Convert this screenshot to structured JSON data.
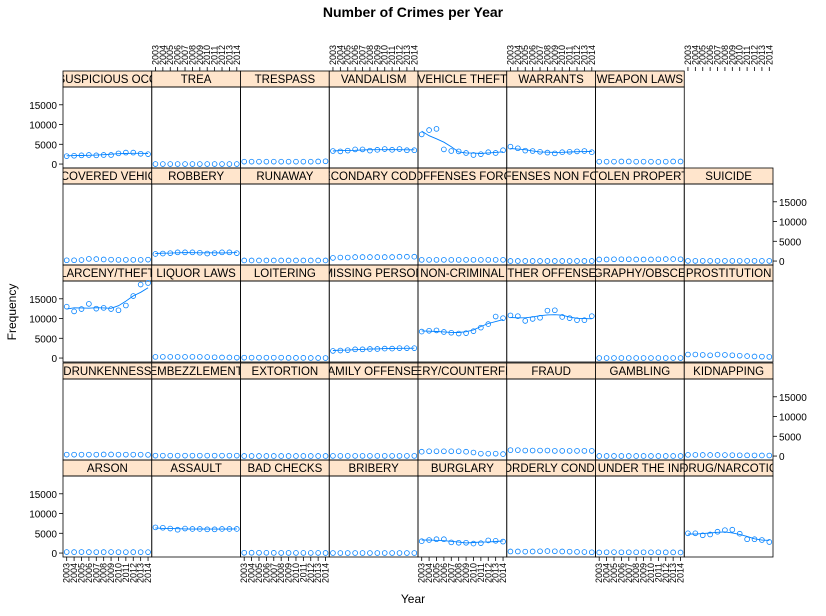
{
  "chart_data": {
    "type": "scatter",
    "title": "Number of Crimes per Year",
    "xlabel": "Year",
    "ylabel": "Frequency",
    "x": [
      2003,
      2004,
      2005,
      2006,
      2007,
      2008,
      2009,
      2010,
      2011,
      2012,
      2013,
      2014
    ],
    "ylim": [
      -1000,
      19500
    ],
    "yticks": [
      0,
      5000,
      10000,
      15000
    ],
    "grid": false,
    "layout": {
      "columns": 8,
      "rows": 5
    },
    "panels": [
      {
        "name": "ARSON",
        "row": 0,
        "col": 0,
        "values": [
          250,
          240,
          260,
          240,
          230,
          240,
          250,
          230,
          220,
          240,
          230,
          220
        ]
      },
      {
        "name": "ASSAULT",
        "row": 0,
        "col": 1,
        "values": [
          6500,
          6400,
          6200,
          5900,
          6200,
          6100,
          6100,
          6000,
          6000,
          6100,
          6100,
          6100
        ],
        "smooth": true
      },
      {
        "name": "BAD CHECKS",
        "row": 0,
        "col": 2,
        "values": [
          70,
          80,
          70,
          60,
          50,
          40,
          40,
          30,
          30,
          30,
          30,
          20
        ]
      },
      {
        "name": "BRIBERY",
        "row": 0,
        "col": 3,
        "values": [
          10,
          10,
          10,
          10,
          10,
          10,
          10,
          10,
          10,
          10,
          10,
          10
        ]
      },
      {
        "name": "BURGLARY",
        "row": 0,
        "col": 4,
        "values": [
          3000,
          3300,
          3500,
          3500,
          2700,
          2600,
          2600,
          2400,
          2500,
          3200,
          3100,
          2900
        ],
        "smooth": true
      },
      {
        "name": "DISORDERLY CONDUCT",
        "row": 0,
        "col": 5,
        "values": [
          400,
          400,
          350,
          400,
          450,
          500,
          450,
          400,
          350,
          300,
          250,
          200
        ]
      },
      {
        "name": "DRIVING UNDER THE INFLUENCE",
        "row": 0,
        "col": 6,
        "values": [
          150,
          200,
          220,
          200,
          200,
          200,
          200,
          200,
          200,
          180,
          180,
          150
        ]
      },
      {
        "name": "DRUG/NARCOTIC",
        "row": 0,
        "col": 7,
        "values": [
          5000,
          5000,
          4500,
          4700,
          5400,
          5800,
          5900,
          4900,
          3500,
          3500,
          3300,
          2800
        ],
        "smooth": true
      },
      {
        "name": "DRUNKENNESS",
        "row": 1,
        "col": 0,
        "values": [
          350,
          350,
          350,
          350,
          350,
          400,
          400,
          350,
          350,
          350,
          350,
          300
        ]
      },
      {
        "name": "EMBEZZLEMENT",
        "row": 1,
        "col": 1,
        "values": [
          100,
          100,
          100,
          100,
          100,
          100,
          100,
          100,
          100,
          100,
          100,
          100
        ]
      },
      {
        "name": "EXTORTION",
        "row": 1,
        "col": 2,
        "values": [
          20,
          20,
          20,
          20,
          20,
          20,
          20,
          20,
          20,
          20,
          20,
          20
        ]
      },
      {
        "name": "FAMILY OFFENSES",
        "row": 1,
        "col": 3,
        "values": [
          40,
          40,
          40,
          40,
          40,
          40,
          40,
          40,
          40,
          40,
          40,
          40
        ]
      },
      {
        "name": "FORGERY/COUNTERFEITING",
        "row": 1,
        "col": 4,
        "values": [
          1100,
          1200,
          1200,
          1200,
          1200,
          1200,
          1100,
          900,
          600,
          600,
          600,
          500
        ]
      },
      {
        "name": "FRAUD",
        "row": 1,
        "col": 5,
        "values": [
          1500,
          1500,
          1400,
          1400,
          1400,
          1400,
          1300,
          1300,
          1300,
          1300,
          1300,
          1300
        ]
      },
      {
        "name": "GAMBLING",
        "row": 1,
        "col": 6,
        "values": [
          20,
          20,
          20,
          20,
          20,
          20,
          20,
          20,
          20,
          20,
          20,
          20
        ]
      },
      {
        "name": "KIDNAPPING",
        "row": 1,
        "col": 7,
        "values": [
          300,
          300,
          280,
          280,
          280,
          250,
          230,
          200,
          180,
          160,
          150,
          140
        ]
      },
      {
        "name": "LARCENY/THEFT",
        "row": 2,
        "col": 0,
        "values": [
          13000,
          11800,
          12400,
          13700,
          12500,
          12700,
          12400,
          12100,
          13300,
          15700,
          18600,
          19000
        ],
        "smooth": true
      },
      {
        "name": "LIQUOR LAWS",
        "row": 2,
        "col": 1,
        "values": [
          300,
          300,
          300,
          300,
          300,
          300,
          300,
          250,
          200,
          150,
          150,
          100
        ]
      },
      {
        "name": "LOITERING",
        "row": 2,
        "col": 2,
        "values": [
          100,
          100,
          100,
          100,
          100,
          100,
          50,
          50,
          50,
          20,
          20,
          10
        ]
      },
      {
        "name": "MISSING PERSON",
        "row": 2,
        "col": 3,
        "values": [
          1800,
          1900,
          2000,
          2200,
          2200,
          2300,
          2300,
          2400,
          2400,
          2500,
          2500,
          2500
        ],
        "smooth": true
      },
      {
        "name": "NON-CRIMINAL",
        "row": 2,
        "col": 4,
        "values": [
          6700,
          6900,
          7000,
          6600,
          6400,
          6200,
          6300,
          6800,
          7700,
          8600,
          10500,
          10100
        ],
        "smooth": true
      },
      {
        "name": "OTHER OFFENSES",
        "row": 2,
        "col": 5,
        "values": [
          10800,
          10600,
          9400,
          9900,
          10200,
          12000,
          12100,
          10400,
          10100,
          9600,
          9600,
          10600
        ],
        "smooth": true
      },
      {
        "name": "PORNOGRAPHY/OBSCENE MAT",
        "row": 2,
        "col": 6,
        "values": [
          10,
          10,
          10,
          10,
          10,
          10,
          10,
          10,
          10,
          10,
          10,
          10
        ]
      },
      {
        "name": "PROSTITUTION",
        "row": 2,
        "col": 7,
        "values": [
          900,
          900,
          800,
          700,
          900,
          800,
          700,
          600,
          500,
          400,
          350,
          300
        ]
      },
      {
        "name": "RECOVERED VEHICLE",
        "row": 3,
        "col": 0,
        "values": [
          200,
          200,
          250,
          550,
          500,
          400,
          350,
          300,
          300,
          300,
          300,
          350
        ]
      },
      {
        "name": "ROBBERY",
        "row": 3,
        "col": 1,
        "values": [
          1800,
          1900,
          2000,
          2200,
          2200,
          2200,
          2100,
          1900,
          2000,
          2200,
          2200,
          2000
        ],
        "smooth": true
      },
      {
        "name": "RUNAWAY",
        "row": 3,
        "col": 2,
        "values": [
          150,
          150,
          150,
          150,
          150,
          150,
          150,
          150,
          150,
          150,
          150,
          150
        ]
      },
      {
        "name": "SECONDARY CODES",
        "row": 3,
        "col": 3,
        "values": [
          800,
          900,
          900,
          1000,
          1000,
          1000,
          1000,
          1000,
          1000,
          1100,
          1100,
          1100
        ]
      },
      {
        "name": "SEX OFFENSES FORCIBLE",
        "row": 3,
        "col": 4,
        "values": [
          300,
          300,
          300,
          300,
          300,
          300,
          300,
          300,
          300,
          300,
          300,
          300
        ]
      },
      {
        "name": "SEX OFFENSES NON FORCIBLE",
        "row": 3,
        "col": 5,
        "values": [
          20,
          20,
          20,
          20,
          20,
          20,
          20,
          20,
          20,
          20,
          20,
          20
        ]
      },
      {
        "name": "STOLEN PROPERTY",
        "row": 3,
        "col": 6,
        "values": [
          400,
          400,
          450,
          450,
          450,
          400,
          400,
          400,
          450,
          500,
          500,
          450
        ]
      },
      {
        "name": "SUICIDE",
        "row": 3,
        "col": 7,
        "values": [
          40,
          40,
          40,
          40,
          40,
          40,
          40,
          40,
          40,
          40,
          40,
          40
        ]
      },
      {
        "name": "SUSPICIOUS OCC",
        "row": 4,
        "col": 0,
        "values": [
          2000,
          2100,
          2200,
          2300,
          2200,
          2300,
          2300,
          2700,
          2900,
          2900,
          2600,
          2500
        ],
        "smooth": true
      },
      {
        "name": "TREA",
        "row": 4,
        "col": 1,
        "values": [
          0,
          0,
          0,
          0,
          0,
          0,
          0,
          0,
          0,
          0,
          0,
          0
        ]
      },
      {
        "name": "TRESPASS",
        "row": 4,
        "col": 2,
        "values": [
          600,
          600,
          600,
          600,
          600,
          600,
          600,
          600,
          600,
          600,
          650,
          700
        ]
      },
      {
        "name": "VANDALISM",
        "row": 4,
        "col": 3,
        "values": [
          3300,
          3200,
          3400,
          3700,
          3700,
          3400,
          3600,
          3800,
          3600,
          3800,
          3500,
          3500
        ],
        "smooth": true
      },
      {
        "name": "VEHICLE THEFT",
        "row": 4,
        "col": 4,
        "values": [
          7500,
          8600,
          8900,
          3700,
          3300,
          3200,
          2800,
          2300,
          2500,
          3000,
          2800,
          3500
        ],
        "smooth": true
      },
      {
        "name": "WARRANTS",
        "row": 4,
        "col": 5,
        "values": [
          4400,
          4000,
          3400,
          3300,
          3100,
          2900,
          2700,
          3000,
          3100,
          3200,
          3300,
          3000
        ],
        "smooth": true
      },
      {
        "name": "WEAPON LAWS",
        "row": 4,
        "col": 6,
        "values": [
          600,
          600,
          600,
          650,
          650,
          600,
          600,
          600,
          550,
          600,
          650,
          650
        ]
      }
    ]
  },
  "colors": {
    "strip": "#ffe5cc",
    "point": "#0080ff",
    "frame": "#000000"
  }
}
